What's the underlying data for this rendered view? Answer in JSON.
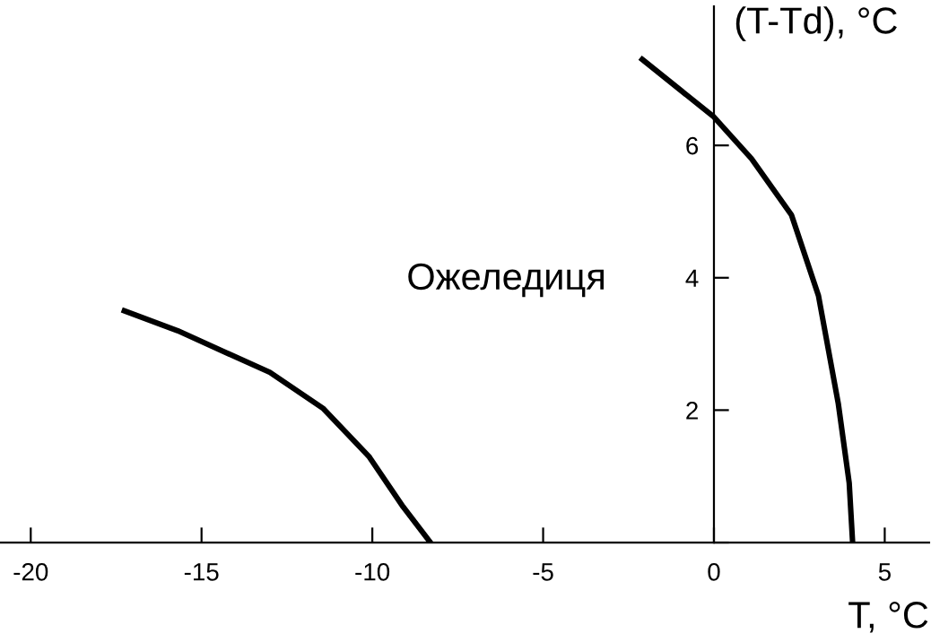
{
  "chart_data": {
    "type": "line",
    "xlabel": "T, °C",
    "ylabel": "(T-Td), °C",
    "annotations": [
      "Ожеледиця"
    ],
    "xlim": [
      -20.9,
      6.3
    ],
    "ylim": [
      0,
      8.1
    ],
    "xticks": [
      -20,
      -15,
      -10,
      -5,
      0,
      5
    ],
    "yticks": [
      {
        "value": 0,
        "label": null
      },
      2,
      4,
      6
    ],
    "grid": false,
    "legend": false,
    "marker": "none",
    "line_style": "solid",
    "series": [
      {
        "color": "#000000",
        "x": [
          -17.26,
          -15.7,
          -13.0,
          -11.45,
          -10.1,
          -9.1,
          -8.3
        ],
        "values": [
          3.5,
          3.2,
          2.57,
          2.03,
          1.3,
          0.54,
          0
        ]
      },
      {
        "color": "#000000",
        "x": [
          -2.1,
          0,
          1.1,
          2.27,
          3.06,
          3.64,
          3.96,
          4.06
        ],
        "values": [
          7.3,
          6.43,
          5.8,
          4.95,
          3.73,
          2.1,
          0.9,
          0
        ]
      }
    ]
  }
}
